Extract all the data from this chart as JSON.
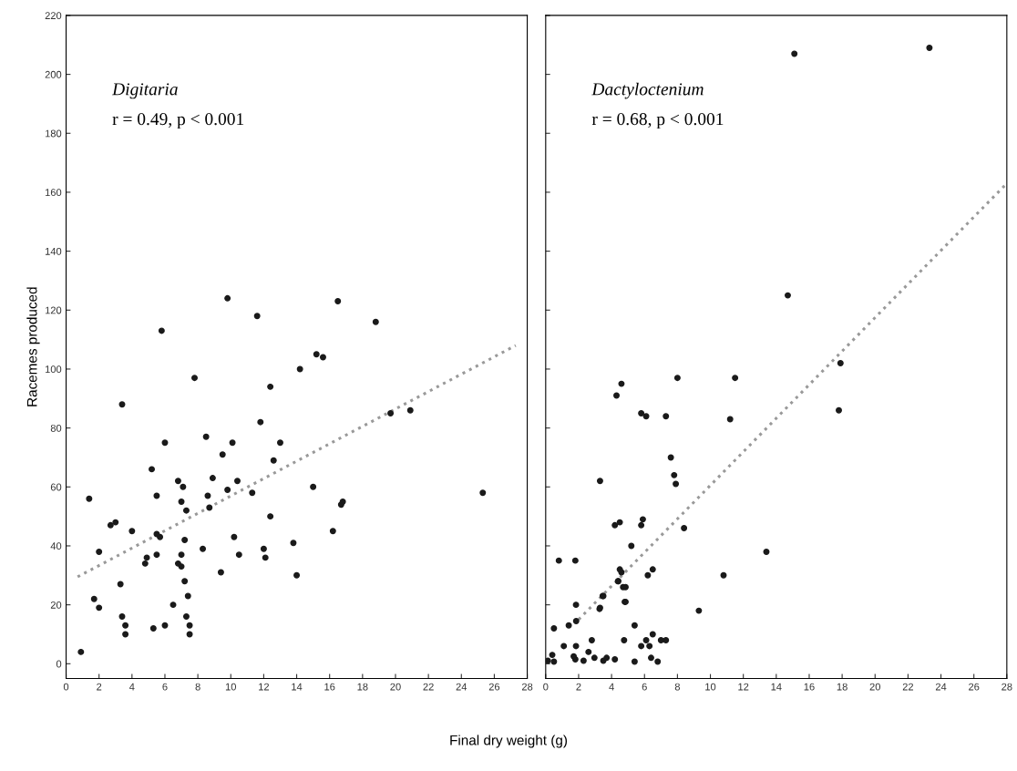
{
  "chart_data": [
    {
      "type": "scatter",
      "ylabel": "Racemes produced",
      "xlabel": "Final dry weight (g)",
      "annotations": [
        "Digitaria",
        "r = 0.49, p < 0.001"
      ],
      "xlim": [
        0,
        28
      ],
      "ylim": [
        -5,
        220
      ],
      "xticks": [
        0,
        2,
        4,
        6,
        8,
        10,
        12,
        14,
        16,
        18,
        20,
        22,
        24,
        26,
        28
      ],
      "yticks": [
        0,
        20,
        40,
        60,
        80,
        100,
        120,
        140,
        160,
        180,
        200,
        220
      ],
      "grid": false,
      "legend": false,
      "marker": "circle",
      "series": [
        {
          "color": "#1a1a1a",
          "x": [
            0.9,
            1.4,
            1.7,
            2,
            2,
            2.7,
            3,
            3.4,
            3.3,
            3.4,
            3.6,
            3.6,
            4,
            4.8,
            4.9,
            5.2,
            5.3,
            5.5,
            5.5,
            5.5,
            5.7,
            5.8,
            6,
            6,
            6.5,
            6.8,
            6.8,
            7,
            7,
            7.1,
            7,
            7.2,
            7.2,
            7.3,
            7.3,
            7.5,
            7.5,
            7.4,
            7.8,
            8.3,
            8.5,
            8.6,
            8.7,
            8.9,
            9.4,
            9.5,
            9.8,
            9.8,
            10.1,
            10.2,
            10.4,
            10.5,
            11.3,
            11.6,
            11.8,
            12,
            12.1,
            12.4,
            12.4,
            12.6,
            13,
            13.8,
            14,
            14.2,
            15,
            15.2,
            15.6,
            16.2,
            16.5,
            16.7,
            16.8,
            18.8,
            19.7,
            20.9,
            25.3
          ],
          "values": [
            4,
            56,
            22,
            19,
            38,
            47,
            48,
            88,
            27,
            16,
            13,
            10,
            45,
            34,
            36,
            66,
            12,
            57,
            37,
            44,
            43,
            113,
            75,
            13,
            20,
            34,
            62,
            33,
            55,
            60,
            37,
            28,
            42,
            52,
            16,
            13,
            10,
            23,
            97,
            39,
            77,
            57,
            53,
            63,
            31,
            71,
            124,
            59,
            75,
            43,
            62,
            37,
            58,
            118,
            82,
            39,
            36,
            50,
            94,
            69,
            75,
            41,
            30,
            100,
            60,
            105,
            104,
            45,
            123,
            54,
            55,
            116,
            85,
            86,
            58
          ]
        },
        {
          "type": "line",
          "line_style": "dotted",
          "marker": "none",
          "color": "#999999",
          "x": [
            0.7,
            27.3
          ],
          "values": [
            29.5,
            108
          ]
        }
      ]
    },
    {
      "type": "scatter",
      "annotations": [
        "Dactyloctenium",
        "r = 0.68, p < 0.001"
      ],
      "xlim": [
        0,
        28
      ],
      "ylim": [
        -5,
        220
      ],
      "xticks": [
        0,
        2,
        4,
        6,
        8,
        10,
        12,
        14,
        16,
        18,
        20,
        22,
        24,
        26,
        28
      ],
      "yticks": [
        0,
        20,
        40,
        60,
        80,
        100,
        120,
        140,
        160,
        180,
        200,
        220
      ],
      "tick_labels": "x",
      "grid": false,
      "legend": false,
      "marker": "circle",
      "series": [
        {
          "color": "#1a1a1a",
          "x": [
            15.1,
            23.3,
            14.7,
            17.9,
            17.8,
            4.6,
            4.3,
            5.8,
            6.1,
            7.3,
            8,
            11.5,
            11.2,
            7.6,
            7.8,
            7.9,
            3.3,
            5.9,
            5.8,
            4.5,
            4.2,
            8.4,
            5.2,
            13.4,
            10.8,
            0.8,
            1.8,
            4.5,
            4.6,
            4.4,
            6.5,
            6.2,
            3.5,
            3.3,
            4.7,
            4.8,
            9.3,
            5.4,
            0.5,
            1.4,
            1.85,
            1.84,
            3.46,
            3.27,
            4.4,
            4.85,
            4.85,
            1.1,
            1.84,
            2.8,
            0.4,
            0.13,
            0.5,
            1.8,
            2.3,
            2.6,
            2.96,
            3.7,
            4.2,
            4.76,
            5.4,
            5.8,
            6.3,
            6.1,
            6.5,
            6.4,
            6.8,
            7.0,
            7.3,
            1.7,
            3.5
          ],
          "values": [
            207,
            209,
            125,
            102,
            86,
            95,
            91,
            85,
            84,
            84,
            97,
            97,
            83,
            70,
            64,
            61,
            62,
            49,
            47,
            48,
            47,
            46,
            40,
            38,
            30,
            35,
            35,
            32,
            31,
            28,
            32,
            30,
            23,
            19,
            26,
            21,
            18,
            13,
            12,
            13,
            14.5,
            20,
            23,
            18.6,
            28,
            26,
            21,
            6,
            6,
            8,
            3,
            1,
            0.7,
            1.5,
            1,
            4,
            2,
            2,
            1.5,
            8,
            0.7,
            6,
            6,
            8,
            10,
            2,
            0.7,
            8,
            8,
            2.5,
            1
          ]
        },
        {
          "type": "line",
          "line_style": "dotted",
          "marker": "none",
          "color": "#999999",
          "x": [
            2,
            28
          ],
          "values": [
            15,
            163
          ]
        }
      ]
    }
  ]
}
